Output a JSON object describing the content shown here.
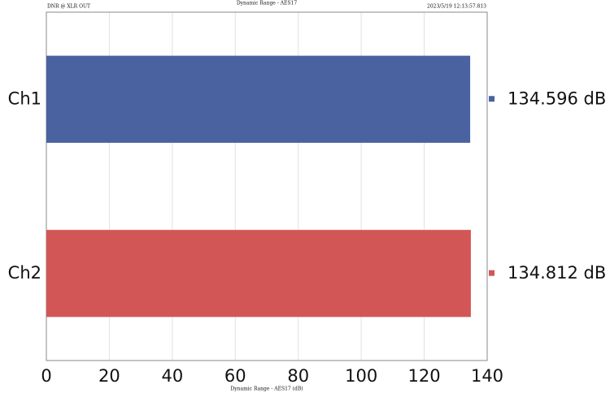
{
  "chart_data": {
    "type": "bar",
    "orientation": "horizontal",
    "title": "Dynamic Range - AES17",
    "subtitle": "DNR @ XLR OUT",
    "timestamp": "2023/5/19 12:13:57.813",
    "x_label": "Dynamic Range - AES17 (dB)",
    "categories": [
      "Ch1",
      "Ch2"
    ],
    "values": [
      134.596,
      134.812
    ],
    "value_labels": [
      "134.596 dB",
      "134.812 dB"
    ],
    "colors": [
      "#4a629f",
      "#d35656"
    ],
    "xlim": [
      0,
      140
    ],
    "xticks": [
      0,
      20,
      40,
      60,
      80,
      100,
      120,
      140
    ],
    "grid": true
  }
}
